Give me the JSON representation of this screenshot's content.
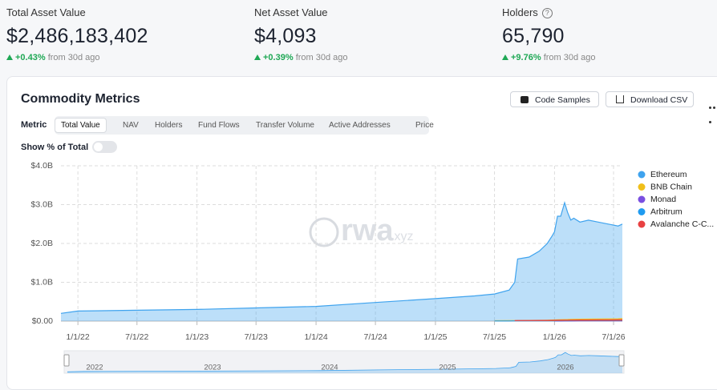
{
  "stats": [
    {
      "label": "Total Asset Value",
      "value": "$2,486,183,402",
      "change": "+0.43%",
      "period": "from 30d ago"
    },
    {
      "label": "Net Asset Value",
      "value": "$4,093",
      "change": "+0.39%",
      "period": "from 30d ago"
    },
    {
      "label": "Holders",
      "value": "65,790",
      "change": "+9.76%",
      "period": "from 30d ago"
    }
  ],
  "panel": {
    "title": "Commodity Metrics",
    "buttons": [
      "Code Samples",
      "Download CSV"
    ],
    "metric_label": "Metric",
    "tabs": [
      "Total Value",
      "NAV",
      "Holders",
      "Fund Flows",
      "Transfer Volume",
      "Active Addresses",
      "Price"
    ],
    "selected_tab": 0,
    "toggle_label": "Show % of Total",
    "toggle_on": false
  },
  "chart_data": {
    "type": "area",
    "watermark": "rwa",
    "watermark_suffix": ".xyz",
    "x": [
      "2021-11-10",
      "2022-01-01",
      "2022-07-01",
      "2023-01-01",
      "2023-07-01",
      "2024-01-01",
      "2024-07-01",
      "2025-01-01",
      "2025-05-01",
      "2025-07-01",
      "2025-08-15",
      "2025-09-01",
      "2025-09-10",
      "2025-10-15",
      "2025-11-15",
      "2025-12-10",
      "2025-12-25",
      "2026-01-01",
      "2026-01-10",
      "2026-01-20",
      "2026-02-01",
      "2026-02-10",
      "2026-02-20",
      "2026-03-01",
      "2026-03-20",
      "2026-04-15",
      "2026-05-15",
      "2026-06-15",
      "2026-07-15",
      "2026-07-28"
    ],
    "xlim": [
      "2021-11-10",
      "2026-07-28"
    ],
    "xticks": [
      {
        "value": "2022-01-01",
        "label": "1/1/22"
      },
      {
        "value": "2022-07-01",
        "label": "7/1/22"
      },
      {
        "value": "2023-01-01",
        "label": "1/1/23"
      },
      {
        "value": "2023-07-01",
        "label": "7/1/23"
      },
      {
        "value": "2024-01-01",
        "label": "1/1/24"
      },
      {
        "value": "2024-07-01",
        "label": "7/1/24"
      },
      {
        "value": "2025-01-01",
        "label": "1/1/25"
      },
      {
        "value": "2025-07-01",
        "label": "7/1/25"
      },
      {
        "value": "2026-01-01",
        "label": "1/1/26"
      },
      {
        "value": "2026-07-01",
        "label": "7/1/26"
      }
    ],
    "ylim": [
      0,
      4000000000
    ],
    "yticks": [
      {
        "value": 0,
        "label": "$0.00"
      },
      {
        "value": 1000000000,
        "label": "$1.0B"
      },
      {
        "value": 2000000000,
        "label": "$2.0B"
      },
      {
        "value": 3000000000,
        "label": "$3.0B"
      },
      {
        "value": 4000000000,
        "label": "$4.0B"
      }
    ],
    "grid": true,
    "legend": "right",
    "navigator_labels": [
      "2022",
      "2023",
      "2024",
      "2025",
      "2026"
    ],
    "series": [
      {
        "name": "Ethereum",
        "color": "#3fa3ee",
        "values": [
          200000000,
          260000000,
          280000000,
          300000000,
          340000000,
          380000000,
          480000000,
          580000000,
          650000000,
          700000000,
          800000000,
          1000000000,
          1600000000,
          1650000000,
          1800000000,
          2000000000,
          2200000000,
          2300000000,
          2700000000,
          2700000000,
          3050000000,
          2800000000,
          2600000000,
          2650000000,
          2550000000,
          2600000000,
          2550000000,
          2500000000,
          2450000000,
          2500000000
        ]
      },
      {
        "name": "BNB Chain",
        "color": "#f0bf1a",
        "values": [
          null,
          null,
          null,
          null,
          null,
          null,
          null,
          null,
          null,
          10000000,
          12000000,
          14000000,
          15000000,
          18000000,
          20000000,
          25000000,
          28000000,
          30000000,
          35000000,
          38000000,
          40000000,
          42000000,
          45000000,
          48000000,
          50000000,
          52000000,
          55000000,
          58000000,
          60000000,
          65000000
        ]
      },
      {
        "name": "Monad",
        "color": "#7a4fe0",
        "values": [
          null,
          null,
          null,
          null,
          null,
          null,
          null,
          null,
          null,
          null,
          null,
          null,
          null,
          null,
          null,
          null,
          null,
          2000000,
          3000000,
          3000000,
          4000000,
          4000000,
          5000000,
          5000000,
          6000000,
          6000000,
          7000000,
          7000000,
          8000000,
          8000000
        ]
      },
      {
        "name": "Arbitrum",
        "color": "#1f9bf0",
        "values": [
          null,
          null,
          null,
          null,
          null,
          null,
          null,
          null,
          null,
          5000000,
          5000000,
          6000000,
          6000000,
          7000000,
          7000000,
          8000000,
          8000000,
          9000000,
          9000000,
          10000000,
          10000000,
          11000000,
          11000000,
          12000000,
          12000000,
          13000000,
          13000000,
          14000000,
          14000000,
          15000000
        ]
      },
      {
        "name": "Avalanche C-C...",
        "color": "#e84142",
        "values": [
          null,
          null,
          null,
          null,
          null,
          null,
          null,
          null,
          null,
          null,
          null,
          15000000,
          16000000,
          17000000,
          18000000,
          19000000,
          20000000,
          21000000,
          22000000,
          23000000,
          24000000,
          25000000,
          26000000,
          27000000,
          28000000,
          29000000,
          30000000,
          31000000,
          32000000,
          33000000
        ]
      }
    ]
  }
}
